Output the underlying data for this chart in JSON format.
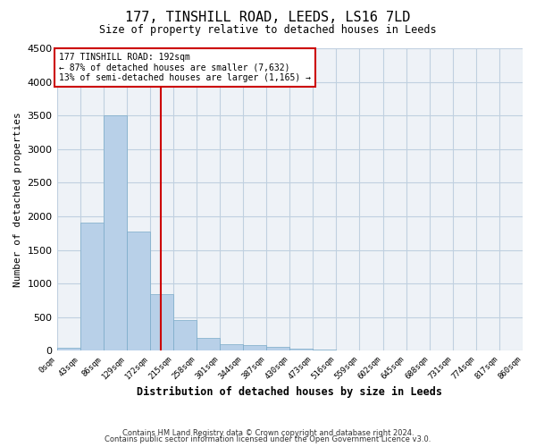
{
  "title": "177, TINSHILL ROAD, LEEDS, LS16 7LD",
  "subtitle": "Size of property relative to detached houses in Leeds",
  "xlabel": "Distribution of detached houses by size in Leeds",
  "ylabel": "Number of detached properties",
  "bar_color": "#b8d0e8",
  "bar_edge_color": "#7aaac8",
  "bin_edges": [
    0,
    43,
    86,
    129,
    172,
    215,
    258,
    301,
    344,
    387,
    430,
    473,
    516,
    559,
    602,
    645,
    688,
    731,
    774,
    817,
    860
  ],
  "bar_heights": [
    50,
    1900,
    3500,
    1775,
    840,
    450,
    185,
    95,
    80,
    55,
    35,
    15,
    5,
    3,
    2,
    1,
    1,
    0,
    0,
    0
  ],
  "ylim": [
    0,
    4500
  ],
  "yticks": [
    0,
    500,
    1000,
    1500,
    2000,
    2500,
    3000,
    3500,
    4000,
    4500
  ],
  "vline_x": 192,
  "vline_color": "#cc0000",
  "annotation_text": "177 TINSHILL ROAD: 192sqm\n← 87% of detached houses are smaller (7,632)\n13% of semi-detached houses are larger (1,165) →",
  "annotation_box_color": "#cc0000",
  "footer_line1": "Contains HM Land Registry data © Crown copyright and database right 2024.",
  "footer_line2": "Contains public sector information licensed under the Open Government Licence v3.0.",
  "background_color": "#eef2f7",
  "grid_color": "#c0d0e0"
}
